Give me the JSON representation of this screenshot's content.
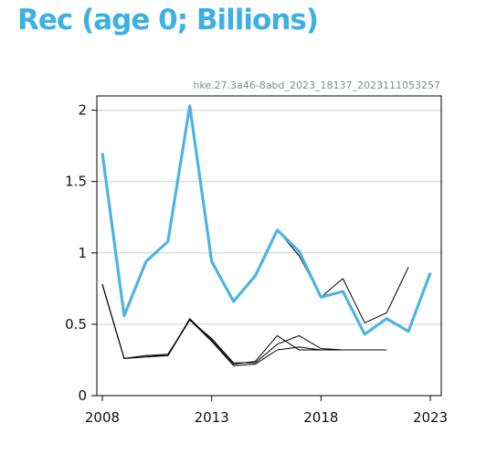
{
  "header": {
    "title": "Rec (age 0; Billions)",
    "source_id": "hke.27.3a46-8abd_2023_18137_2023111053257"
  },
  "colors": {
    "title": "#3db1e3",
    "source": "#7f8b96",
    "current_series": "#4fb3e2",
    "previous_series": "#000000",
    "grid": "#cfcfcf",
    "frame": "#000000"
  },
  "chart_data": {
    "type": "line",
    "title": "Rec (age 0; Billions)",
    "xlabel": "",
    "ylabel": "",
    "xlim": [
      2007.75,
      2023.5
    ],
    "ylim": [
      0,
      2.1
    ],
    "xticks": [
      2008,
      2013,
      2018,
      2023
    ],
    "yticks": [
      0,
      0.5,
      1,
      1.5,
      2
    ],
    "xtick_labels": [
      "2008",
      "2013",
      "2018",
      "2023"
    ],
    "ytick_labels": [
      "0",
      "0.5",
      "1",
      "1.5",
      "2"
    ],
    "grid": "horizontal",
    "legend": "none",
    "series": [
      {
        "role": "current",
        "x": [
          2008,
          2009,
          2010,
          2011,
          2012,
          2013,
          2014,
          2015,
          2016,
          2017,
          2018,
          2019,
          2020,
          2021,
          2022,
          2023
        ],
        "values": [
          1.7,
          0.56,
          0.94,
          1.08,
          2.03,
          0.94,
          0.66,
          0.84,
          1.16,
          1.01,
          0.69,
          0.73,
          0.43,
          0.54,
          0.45,
          0.86
        ]
      },
      {
        "role": "previous",
        "x": [
          2008,
          2009,
          2010,
          2011,
          2012,
          2013,
          2014,
          2015,
          2016,
          2017,
          2018,
          2019,
          2020,
          2021,
          2022
        ],
        "values": [
          1.7,
          0.56,
          0.94,
          1.08,
          2.03,
          0.94,
          0.66,
          0.84,
          1.16,
          0.98,
          0.69,
          0.82,
          0.51,
          0.58,
          0.9
        ]
      },
      {
        "role": "previous",
        "x": [
          2008,
          2009,
          2010,
          2011,
          2012,
          2013,
          2014,
          2015,
          2016,
          2017,
          2018,
          2019,
          2020
        ],
        "values": [
          0.78,
          0.26,
          0.28,
          0.28,
          0.54,
          0.39,
          0.22,
          0.24,
          0.42,
          0.32,
          0.32,
          0.32,
          0.32
        ]
      },
      {
        "role": "previous",
        "x": [
          2008,
          2009,
          2010,
          2011,
          2012,
          2013,
          2014,
          2015,
          2016,
          2017,
          2018,
          2019,
          2020
        ],
        "values": [
          0.78,
          0.26,
          0.28,
          0.29,
          0.53,
          0.4,
          0.23,
          0.23,
          0.36,
          0.42,
          0.33,
          0.32,
          0.32
        ]
      },
      {
        "role": "previous",
        "x": [
          2008,
          2009,
          2010,
          2011,
          2012,
          2013,
          2014,
          2015,
          2016,
          2017,
          2018,
          2019,
          2020,
          2021
        ],
        "values": [
          0.78,
          0.26,
          0.27,
          0.28,
          0.53,
          0.38,
          0.21,
          0.22,
          0.32,
          0.34,
          0.32,
          0.32,
          0.32,
          0.32
        ]
      }
    ]
  }
}
